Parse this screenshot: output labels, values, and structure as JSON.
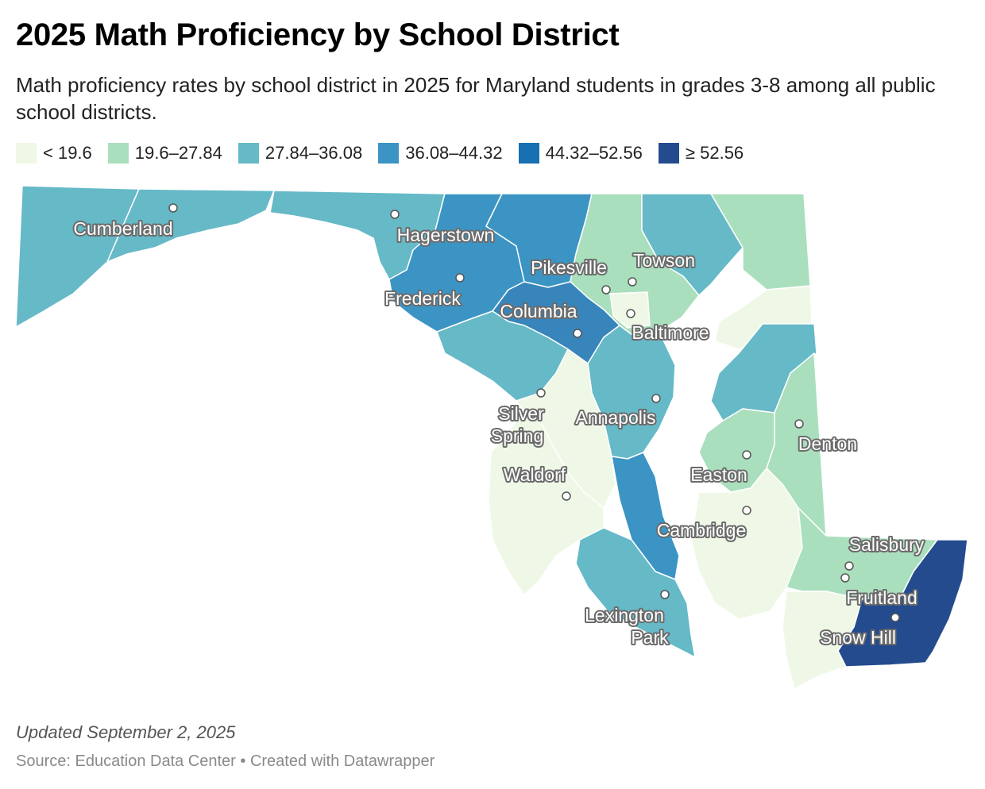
{
  "title": "2025 Math Proficiency by School District",
  "subtitle": "Math proficiency rates by school district in 2025 for Maryland students in grades 3-8 among all public school districts.",
  "legend": [
    {
      "label": "< 19.6",
      "color": "#eff8e6"
    },
    {
      "label": "19.6–27.84",
      "color": "#aadfbd"
    },
    {
      "label": "27.84–36.08",
      "color": "#66b9c7"
    },
    {
      "label": "36.08–44.32",
      "color": "#3b94c4"
    },
    {
      "label": "44.32–52.56",
      "color": "#1670b1"
    },
    {
      "label": "≥ 52.56",
      "color": "#234b8e"
    }
  ],
  "cities": [
    {
      "name": "Cumberland"
    },
    {
      "name": "Hagerstown"
    },
    {
      "name": "Frederick"
    },
    {
      "name": "Pikesville"
    },
    {
      "name": "Towson"
    },
    {
      "name": "Columbia"
    },
    {
      "name": "Baltimore"
    },
    {
      "name": "Silver Spring"
    },
    {
      "name": "Annapolis"
    },
    {
      "name": "Denton"
    },
    {
      "name": "Easton"
    },
    {
      "name": "Waldorf"
    },
    {
      "name": "Cambridge"
    },
    {
      "name": "Salisbury"
    },
    {
      "name": "Fruitland"
    },
    {
      "name": "Lexington Park"
    },
    {
      "name": "Snow Hill"
    }
  ],
  "footer": {
    "updated": "Updated September 2, 2025",
    "source": "Source: Education Data Center • Created with Datawrapper"
  }
}
